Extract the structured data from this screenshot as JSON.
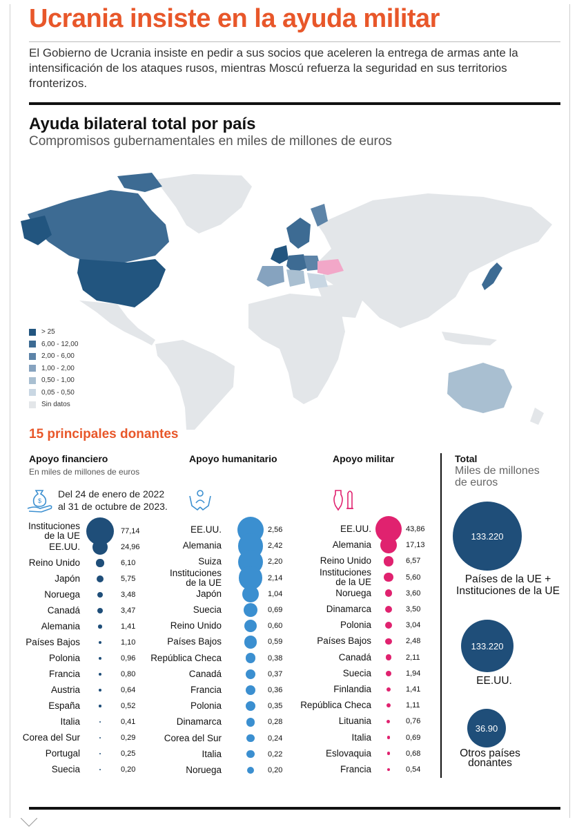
{
  "header": {
    "title": "Ucrania insiste en la ayuda militar",
    "intro": "El Gobierno de Ucrania insiste en pedir a sus socios que aceleren la entrega de armas ante la intensificación de los ataques rusos, mientras Moscú refuerza la seguridad en sus territorios fronterizos."
  },
  "map_section": {
    "title": "Ayuda bilateral total por país",
    "subtitle": "Compromisos gubernamentales en miles de millones de euros",
    "legend": [
      {
        "label": "> 25",
        "color": "#22557f"
      },
      {
        "label": "6,00 - 12,00",
        "color": "#3d6b93"
      },
      {
        "label": "2,00 - 6,00",
        "color": "#5d84a8"
      },
      {
        "label": "1,00 - 2,00",
        "color": "#86a3bf"
      },
      {
        "label": "0,50 - 1,00",
        "color": "#a9bfd1"
      },
      {
        "label": "0,05 - 0,50",
        "color": "#c9d7e3"
      },
      {
        "label": "Sin datos",
        "color": "#e3e6e9"
      }
    ],
    "highlight_color": "#f2a7c8"
  },
  "donors_title": "15 principales donantes",
  "financial": {
    "title": "Apoyo financiero",
    "subtitle": "En miles de millones de euros",
    "date_line1": "Del 24 de enero de 2022",
    "date_line2": "al 31 de octubre de 2023.",
    "icon": "money-bag-hand-icon",
    "color": "#1f4e79",
    "items": [
      {
        "name": "Instituciones de la UE",
        "value": "77,14",
        "v": 77.14
      },
      {
        "name": "EE.UU.",
        "value": "24,96",
        "v": 24.96
      },
      {
        "name": "Reino Unido",
        "value": "6,10",
        "v": 6.1
      },
      {
        "name": "Japón",
        "value": "5,75",
        "v": 5.75
      },
      {
        "name": "Noruega",
        "value": "3,48",
        "v": 3.48
      },
      {
        "name": "Canadá",
        "value": "3,47",
        "v": 3.47
      },
      {
        "name": "Alemania",
        "value": "1,41",
        "v": 1.41
      },
      {
        "name": "Países Bajos",
        "value": "1,10",
        "v": 1.1
      },
      {
        "name": "Polonia",
        "value": "0,96",
        "v": 0.96
      },
      {
        "name": "Francia",
        "value": "0,80",
        "v": 0.8
      },
      {
        "name": "Austria",
        "value": "0,64",
        "v": 0.64
      },
      {
        "name": "España",
        "value": "0,52",
        "v": 0.52
      },
      {
        "name": "Italia",
        "value": "0,41",
        "v": 0.41
      },
      {
        "name": "Corea del Sur",
        "value": "0,29",
        "v": 0.29
      },
      {
        "name": "Portugal",
        "value": "0,25",
        "v": 0.25
      },
      {
        "name": "Suecia",
        "value": "0,20",
        "v": 0.2
      }
    ]
  },
  "humanitarian": {
    "title": "Apoyo humanitario",
    "icon": "helping-hands-icon",
    "color": "#3b8fd0",
    "items": [
      {
        "name": "EE.UU.",
        "value": "2,56",
        "v": 2.56
      },
      {
        "name": "Alemania",
        "value": "2,42",
        "v": 2.42
      },
      {
        "name": "Suiza",
        "value": "2,20",
        "v": 2.2
      },
      {
        "name": "Instituciones de la UE",
        "value": "2,14",
        "v": 2.14
      },
      {
        "name": "Japón",
        "value": "1,04",
        "v": 1.04
      },
      {
        "name": "Suecia",
        "value": "0,69",
        "v": 0.69
      },
      {
        "name": "Reino Unido",
        "value": "0,60",
        "v": 0.6
      },
      {
        "name": "Países Bajos",
        "value": "0,59",
        "v": 0.59
      },
      {
        "name": "República Checa",
        "value": "0,38",
        "v": 0.38
      },
      {
        "name": "Canadá",
        "value": "0,37",
        "v": 0.37
      },
      {
        "name": "Francia",
        "value": "0,36",
        "v": 0.36
      },
      {
        "name": "Polonia",
        "value": "0,35",
        "v": 0.35
      },
      {
        "name": "Dinamarca",
        "value": "0,28",
        "v": 0.28
      },
      {
        "name": "Corea del Sur",
        "value": "0,24",
        "v": 0.24
      },
      {
        "name": "Italia",
        "value": "0,22",
        "v": 0.22
      },
      {
        "name": "Noruega",
        "value": "0,20",
        "v": 0.2
      }
    ]
  },
  "military": {
    "title": "Apoyo militar",
    "icon": "bomb-missile-icon",
    "color": "#e0226f",
    "items": [
      {
        "name": "EE.UU.",
        "value": "43,86",
        "v": 43.86
      },
      {
        "name": "Alemania",
        "value": "17,13",
        "v": 17.13
      },
      {
        "name": "Reino Unido",
        "value": "6,57",
        "v": 6.57
      },
      {
        "name": "Instituciones de la UE",
        "value": "5,60",
        "v": 5.6
      },
      {
        "name": "Noruega",
        "value": "3,60",
        "v": 3.6
      },
      {
        "name": "Dinamarca",
        "value": "3,50",
        "v": 3.5
      },
      {
        "name": "Polonia",
        "value": "3,04",
        "v": 3.04
      },
      {
        "name": "Países Bajos",
        "value": "2,48",
        "v": 2.48
      },
      {
        "name": "Canadá",
        "value": "2,11",
        "v": 2.11
      },
      {
        "name": "Suecia",
        "value": "1,94",
        "v": 1.94
      },
      {
        "name": "Finlandia",
        "value": "1,41",
        "v": 1.41
      },
      {
        "name": "República Checa",
        "value": "1,11",
        "v": 1.11
      },
      {
        "name": "Lituania",
        "value": "0,76",
        "v": 0.76
      },
      {
        "name": "Italia",
        "value": "0,69",
        "v": 0.69
      },
      {
        "name": "Eslovaquia",
        "value": "0,68",
        "v": 0.68
      },
      {
        "name": "Francia",
        "value": "0,54",
        "v": 0.54
      }
    ]
  },
  "total": {
    "title": "Total",
    "subtitle_line1": "Miles de millones",
    "subtitle_line2": "de euros",
    "items": [
      {
        "value": "133.220",
        "label_line1": "Países de la UE +",
        "label_line2": "Instituciones de la UE"
      },
      {
        "value": "133.220",
        "label_line1": "EE.UU.",
        "label_line2": ""
      },
      {
        "value": "36.90",
        "label_line1": "Otros países",
        "label_line2": "donantes"
      }
    ]
  },
  "chart_data": [
    {
      "type": "scatter",
      "title": "Apoyo financiero",
      "subtitle": "En miles de millones de euros",
      "categories": [
        "Instituciones de la UE",
        "EE.UU.",
        "Reino Unido",
        "Japón",
        "Noruega",
        "Canadá",
        "Alemania",
        "Países Bajos",
        "Polonia",
        "Francia",
        "Austria",
        "España",
        "Italia",
        "Corea del Sur",
        "Portugal",
        "Suecia"
      ],
      "values": [
        77.14,
        24.96,
        6.1,
        5.75,
        3.48,
        3.47,
        1.41,
        1.1,
        0.96,
        0.8,
        0.64,
        0.52,
        0.41,
        0.29,
        0.25,
        0.2
      ]
    },
    {
      "type": "scatter",
      "title": "Apoyo humanitario",
      "categories": [
        "EE.UU.",
        "Alemania",
        "Suiza",
        "Instituciones de la UE",
        "Japón",
        "Suecia",
        "Reino Unido",
        "Países Bajos",
        "República Checa",
        "Canadá",
        "Francia",
        "Polonia",
        "Dinamarca",
        "Corea del Sur",
        "Italia",
        "Noruega"
      ],
      "values": [
        2.56,
        2.42,
        2.2,
        2.14,
        1.04,
        0.69,
        0.6,
        0.59,
        0.38,
        0.37,
        0.36,
        0.35,
        0.28,
        0.24,
        0.22,
        0.2
      ]
    },
    {
      "type": "scatter",
      "title": "Apoyo militar",
      "categories": [
        "EE.UU.",
        "Alemania",
        "Reino Unido",
        "Instituciones de la UE",
        "Noruega",
        "Dinamarca",
        "Polonia",
        "Países Bajos",
        "Canadá",
        "Suecia",
        "Finlandia",
        "República Checa",
        "Lituania",
        "Italia",
        "Eslovaquia",
        "Francia"
      ],
      "values": [
        43.86,
        17.13,
        6.57,
        5.6,
        3.6,
        3.5,
        3.04,
        2.48,
        2.11,
        1.94,
        1.41,
        1.11,
        0.76,
        0.69,
        0.68,
        0.54
      ]
    },
    {
      "type": "scatter",
      "title": "Total",
      "subtitle": "Miles de millones de euros",
      "categories": [
        "Países de la UE + Instituciones de la UE",
        "EE.UU.",
        "Otros países donantes"
      ],
      "values": [
        133.22,
        133.22,
        36.9
      ]
    }
  ]
}
